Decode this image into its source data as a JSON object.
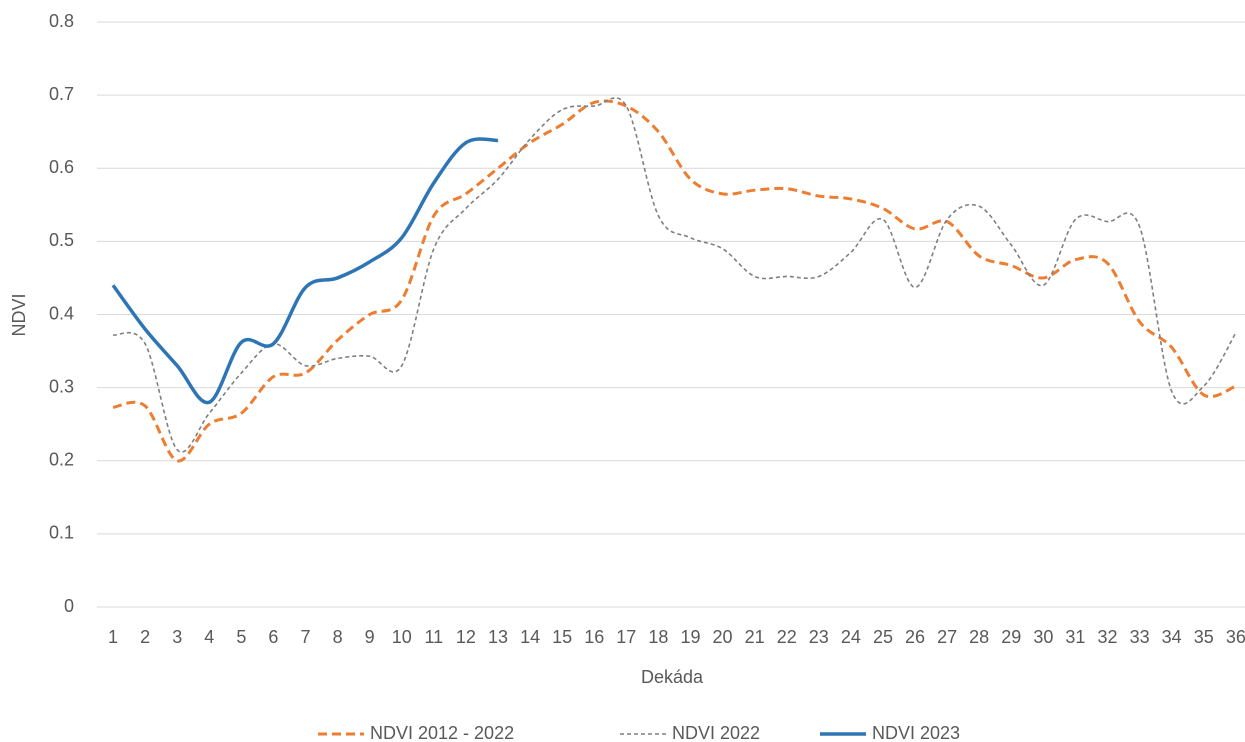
{
  "chart_data": {
    "type": "line",
    "x_label": "Dekáda",
    "y_label": "NDVI",
    "categories": [
      "1",
      "2",
      "3",
      "4",
      "5",
      "6",
      "7",
      "8",
      "9",
      "10",
      "11",
      "12",
      "13",
      "14",
      "15",
      "16",
      "17",
      "18",
      "19",
      "20",
      "21",
      "22",
      "23",
      "24",
      "25",
      "26",
      "27",
      "28",
      "29",
      "30",
      "31",
      "32",
      "33",
      "34",
      "35",
      "36"
    ],
    "series": [
      {
        "name": "NDVI 2012 - 2022",
        "color": "#ed7d31",
        "line_style": "dashed",
        "values": [
          0.273,
          0.275,
          0.2,
          0.25,
          0.265,
          0.315,
          0.32,
          0.365,
          0.4,
          0.42,
          0.535,
          0.565,
          0.6,
          0.635,
          0.66,
          0.69,
          0.685,
          0.65,
          0.585,
          0.565,
          0.57,
          0.572,
          0.562,
          0.558,
          0.545,
          0.517,
          0.527,
          0.48,
          0.467,
          0.45,
          0.475,
          0.47,
          0.39,
          0.355,
          0.29,
          0.302
        ]
      },
      {
        "name": "NDVI 2022",
        "color": "#7f7f7f",
        "line_style": "dotted",
        "values": [
          0.372,
          0.36,
          0.215,
          0.265,
          0.32,
          0.36,
          0.33,
          0.34,
          0.343,
          0.33,
          0.49,
          0.545,
          0.585,
          0.64,
          0.68,
          0.685,
          0.685,
          0.535,
          0.505,
          0.49,
          0.452,
          0.452,
          0.452,
          0.485,
          0.53,
          0.437,
          0.53,
          0.548,
          0.495,
          0.44,
          0.53,
          0.527,
          0.52,
          0.295,
          0.302,
          0.375
        ]
      },
      {
        "name": "NDVI 2023",
        "color": "#2e75b6",
        "line_style": "solid",
        "values": [
          0.44,
          0.38,
          0.33,
          0.28,
          0.362,
          0.36,
          0.437,
          0.45,
          0.472,
          0.505,
          0.58,
          0.635,
          0.638,
          null,
          null,
          null,
          null,
          null,
          null,
          null,
          null,
          null,
          null,
          null,
          null,
          null,
          null,
          null,
          null,
          null,
          null,
          null,
          null,
          null,
          null,
          null
        ]
      }
    ],
    "ylim": [
      0,
      0.8
    ],
    "yticks": [
      0,
      0.1,
      0.2,
      0.3,
      0.4,
      0.5,
      0.6,
      0.7,
      0.8
    ],
    "grid": true,
    "legend": "bottom"
  }
}
